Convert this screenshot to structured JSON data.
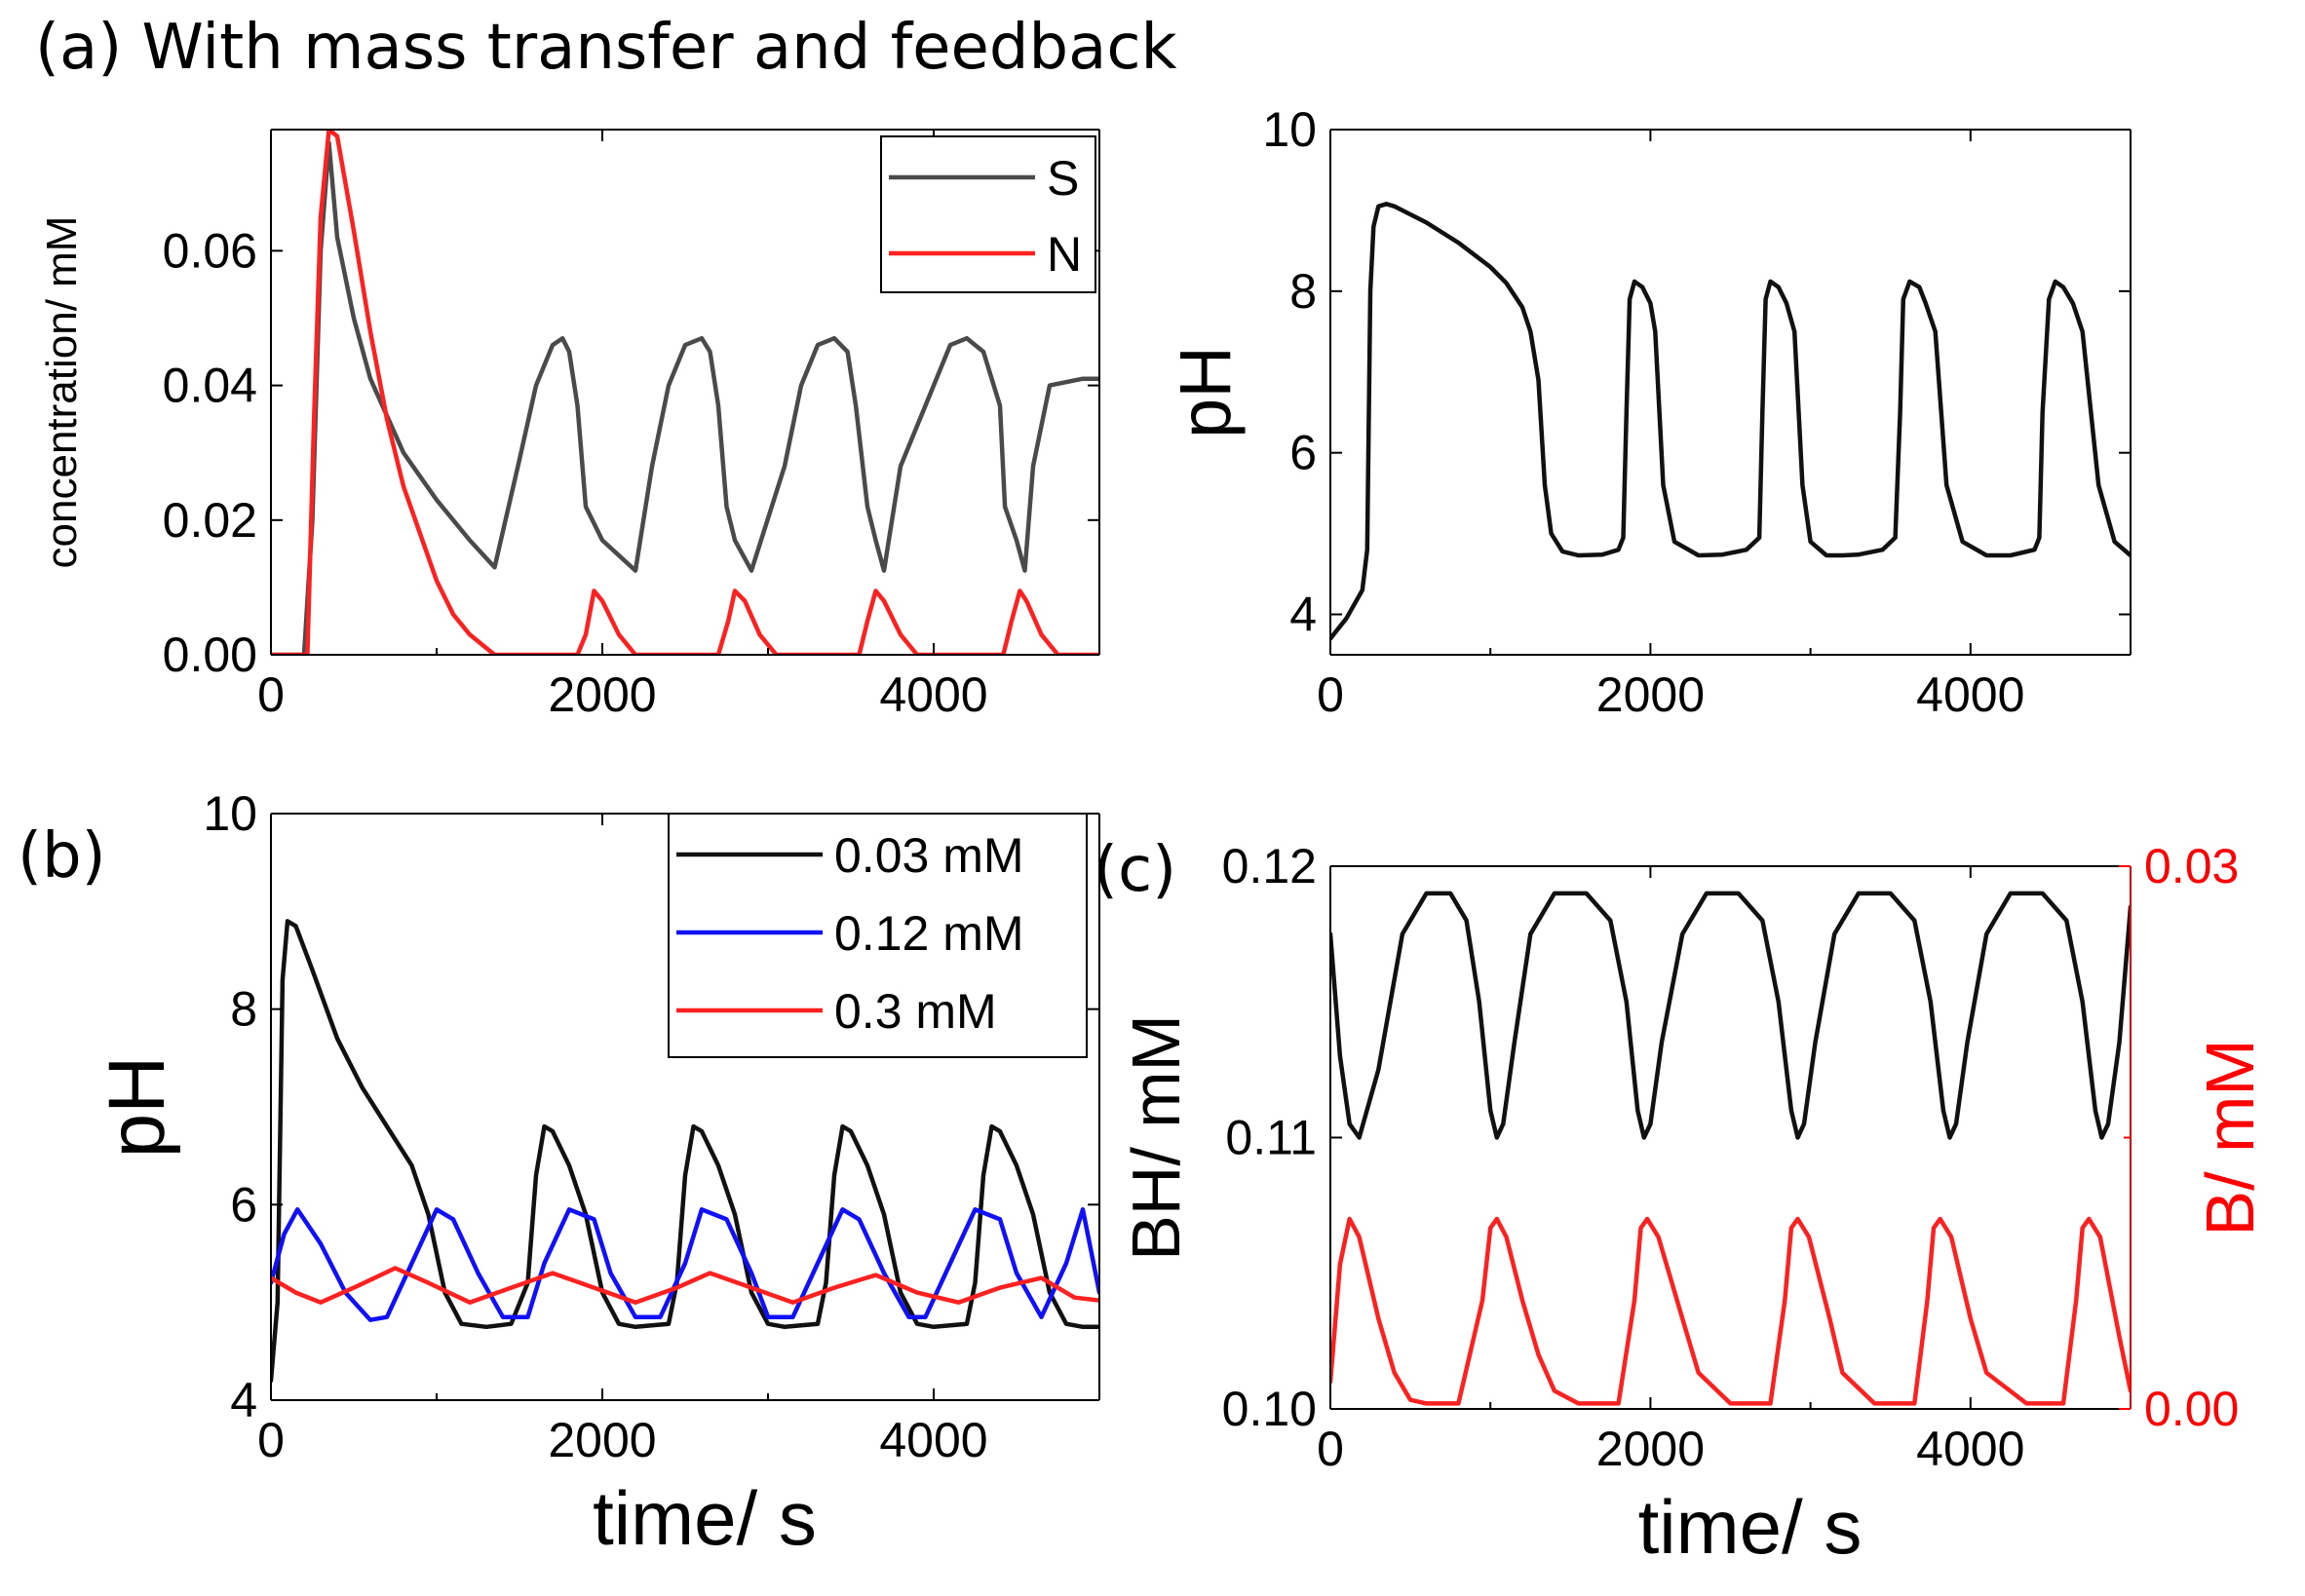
{
  "figure": {
    "title_a": "(a) With mass transfer and feedback",
    "label_b": "(b)",
    "label_c": "(c)"
  },
  "colors": {
    "black": "#111111",
    "gray": "#4a4a4a",
    "red": "#ff2020",
    "blue": "#1010ff",
    "axis_red": "#ff0000"
  },
  "chart_data": [
    {
      "id": "a_conc",
      "type": "line",
      "title": "",
      "xlabel": "",
      "ylabel": "concentration/ mM",
      "xlim": [
        0,
        5000
      ],
      "ylim": [
        0,
        0.078
      ],
      "xticks": [
        0,
        2000,
        4000
      ],
      "xtick_labels": [
        "0",
        "2000",
        "4000"
      ],
      "yticks": [
        0,
        0.02,
        0.04,
        0.06
      ],
      "ytick_labels": [
        "0.00",
        "0.02",
        "0.04",
        "0.06"
      ],
      "legend": {
        "position": "top-right",
        "entries": [
          "S",
          "N"
        ]
      },
      "series": [
        {
          "name": "S",
          "color": "#4a4a4a",
          "x": [
            0,
            200,
            250,
            300,
            350,
            400,
            500,
            600,
            800,
            1000,
            1200,
            1350,
            1500,
            1600,
            1700,
            1760,
            1800,
            1850,
            1900,
            2000,
            2200,
            2300,
            2400,
            2500,
            2600,
            2650,
            2700,
            2750,
            2800,
            2900,
            3100,
            3200,
            3300,
            3400,
            3480,
            3530,
            3600,
            3650,
            3700,
            3800,
            4000,
            4100,
            4200,
            4300,
            4400,
            4430,
            4500,
            4550,
            4600,
            4700,
            4900,
            5000
          ],
          "y": [
            0,
            0,
            0.02,
            0.06,
            0.076,
            0.062,
            0.05,
            0.041,
            0.03,
            0.023,
            0.017,
            0.013,
            0.029,
            0.04,
            0.046,
            0.047,
            0.045,
            0.037,
            0.022,
            0.017,
            0.0125,
            0.028,
            0.04,
            0.046,
            0.047,
            0.045,
            0.037,
            0.022,
            0.017,
            0.0125,
            0.028,
            0.04,
            0.046,
            0.047,
            0.045,
            0.037,
            0.022,
            0.017,
            0.0125,
            0.028,
            0.04,
            0.046,
            0.047,
            0.045,
            0.037,
            0.022,
            0.017,
            0.0125,
            0.028,
            0.04,
            0.041,
            0.041
          ]
        },
        {
          "name": "N",
          "color": "#ff2020",
          "x": [
            0,
            220,
            260,
            300,
            350,
            400,
            500,
            600,
            700,
            800,
            900,
            1000,
            1100,
            1200,
            1300,
            1350,
            1850,
            1900,
            1950,
            2000,
            2100,
            2200,
            2700,
            2760,
            2800,
            2860,
            2950,
            3050,
            3550,
            3600,
            3650,
            3700,
            3800,
            3900,
            4420,
            4470,
            4520,
            4560,
            4650,
            4750,
            5000
          ],
          "y": [
            0,
            0,
            0.035,
            0.065,
            0.078,
            0.077,
            0.063,
            0.048,
            0.035,
            0.025,
            0.018,
            0.011,
            0.006,
            0.003,
            0.001,
            0,
            0,
            0.003,
            0.0095,
            0.008,
            0.003,
            0,
            0,
            0.005,
            0.0095,
            0.008,
            0.003,
            0,
            0,
            0.005,
            0.0095,
            0.008,
            0.003,
            0,
            0,
            0.005,
            0.0095,
            0.008,
            0.003,
            0,
            0
          ]
        }
      ]
    },
    {
      "id": "a_ph",
      "type": "line",
      "title": "",
      "xlabel": "",
      "ylabel": "pH",
      "xlim": [
        0,
        5000
      ],
      "ylim": [
        3.5,
        10
      ],
      "xticks": [
        0,
        2000,
        4000
      ],
      "xtick_labels": [
        "0",
        "2000",
        "4000"
      ],
      "yticks": [
        4,
        6,
        8,
        10
      ],
      "ytick_labels": [
        "4",
        "6",
        "8",
        "10"
      ],
      "series": [
        {
          "name": "pH",
          "color": "#111111",
          "x": [
            0,
            100,
            200,
            230,
            250,
            270,
            300,
            350,
            400,
            600,
            800,
            1000,
            1100,
            1200,
            1250,
            1300,
            1340,
            1380,
            1450,
            1550,
            1700,
            1800,
            1830,
            1850,
            1870,
            1900,
            1950,
            2000,
            2030,
            2080,
            2150,
            2300,
            2450,
            2600,
            2680,
            2700,
            2720,
            2750,
            2800,
            2850,
            2900,
            2950,
            3000,
            3100,
            3200,
            3300,
            3450,
            3530,
            3560,
            3580,
            3620,
            3680,
            3720,
            3780,
            3850,
            3950,
            4100,
            4250,
            4400,
            4430,
            4450,
            4490,
            4530,
            4580,
            4640,
            4700,
            4800,
            4900,
            5000
          ],
          "y": [
            3.7,
            3.95,
            4.3,
            4.8,
            8.0,
            8.8,
            9.05,
            9.08,
            9.05,
            8.85,
            8.6,
            8.3,
            8.1,
            7.8,
            7.5,
            6.9,
            5.6,
            5.0,
            4.78,
            4.73,
            4.74,
            4.8,
            4.95,
            6.5,
            7.9,
            8.12,
            8.05,
            7.85,
            7.5,
            5.6,
            4.9,
            4.73,
            4.74,
            4.8,
            4.95,
            6.5,
            7.9,
            8.12,
            8.05,
            7.85,
            7.5,
            5.6,
            4.9,
            4.73,
            4.73,
            4.74,
            4.8,
            4.95,
            6.5,
            7.9,
            8.12,
            8.05,
            7.85,
            7.5,
            5.6,
            4.9,
            4.73,
            4.73,
            4.8,
            4.95,
            6.5,
            7.9,
            8.12,
            8.05,
            7.85,
            7.5,
            5.6,
            4.9,
            4.73
          ]
        }
      ]
    },
    {
      "id": "b_ph",
      "type": "line",
      "title": "",
      "xlabel": "time/ s",
      "ylabel": "pH",
      "xlim": [
        0,
        5000
      ],
      "ylim": [
        4,
        10
      ],
      "xticks": [
        0,
        2000,
        4000
      ],
      "xtick_labels": [
        "0",
        "2000",
        "4000"
      ],
      "yticks": [
        4,
        6,
        8,
        10
      ],
      "ytick_labels": [
        "4",
        "6",
        "8",
        "10"
      ],
      "legend": {
        "position": "top-right",
        "entries": [
          "0.03 mM",
          "0.12 mM",
          "0.3 mM"
        ]
      },
      "series": [
        {
          "name": "0.03 mM",
          "color": "#111111",
          "x": [
            0,
            40,
            70,
            100,
            150,
            250,
            400,
            550,
            700,
            850,
            950,
            1050,
            1150,
            1300,
            1450,
            1550,
            1600,
            1650,
            1700,
            1800,
            1900,
            2000,
            2100,
            2200,
            2400,
            2450,
            2500,
            2550,
            2600,
            2700,
            2800,
            2900,
            3000,
            3100,
            3300,
            3350,
            3400,
            3450,
            3500,
            3600,
            3700,
            3800,
            3900,
            4000,
            4200,
            4250,
            4300,
            4350,
            4400,
            4500,
            4600,
            4700,
            4800,
            4900,
            5000
          ],
          "y": [
            4.2,
            5.0,
            8.3,
            8.9,
            8.85,
            8.4,
            7.7,
            7.2,
            6.8,
            6.4,
            5.9,
            5.1,
            4.78,
            4.75,
            4.78,
            5.2,
            6.3,
            6.8,
            6.75,
            6.4,
            5.9,
            5.1,
            4.78,
            4.75,
            4.78,
            5.2,
            6.3,
            6.8,
            6.75,
            6.4,
            5.9,
            5.1,
            4.78,
            4.75,
            4.78,
            5.2,
            6.3,
            6.8,
            6.75,
            6.4,
            5.9,
            5.1,
            4.78,
            4.75,
            4.78,
            5.2,
            6.3,
            6.8,
            6.75,
            6.4,
            5.9,
            5.1,
            4.78,
            4.75,
            4.75
          ]
        },
        {
          "name": "0.12 mM",
          "color": "#1010ff",
          "x": [
            0,
            80,
            160,
            300,
            450,
            600,
            700,
            850,
            1000,
            1100,
            1250,
            1400,
            1550,
            1650,
            1800,
            1950,
            2050,
            2200,
            2350,
            2500,
            2600,
            2750,
            2900,
            3000,
            3150,
            3300,
            3450,
            3550,
            3700,
            3850,
            3950,
            4100,
            4250,
            4400,
            4500,
            4650,
            4800,
            4900,
            5000
          ],
          "y": [
            5.2,
            5.7,
            5.95,
            5.6,
            5.1,
            4.82,
            4.85,
            5.4,
            5.95,
            5.85,
            5.3,
            4.85,
            4.85,
            5.4,
            5.95,
            5.85,
            5.3,
            4.85,
            4.85,
            5.4,
            5.95,
            5.85,
            5.3,
            4.85,
            4.85,
            5.4,
            5.95,
            5.85,
            5.3,
            4.85,
            4.85,
            5.4,
            5.95,
            5.85,
            5.3,
            4.85,
            5.4,
            5.95,
            5.1
          ]
        },
        {
          "name": "0.3 mM",
          "color": "#ff2020",
          "x": [
            0,
            150,
            300,
            500,
            750,
            950,
            1200,
            1450,
            1700,
            1950,
            2200,
            2450,
            2650,
            2900,
            3150,
            3400,
            3650,
            3900,
            4150,
            4400,
            4650,
            4850,
            5000
          ],
          "y": [
            5.25,
            5.1,
            5.0,
            5.15,
            5.35,
            5.2,
            5.0,
            5.15,
            5.3,
            5.15,
            5.0,
            5.15,
            5.3,
            5.15,
            5.0,
            5.15,
            5.28,
            5.1,
            5.0,
            5.15,
            5.25,
            5.05,
            5.02
          ]
        }
      ]
    },
    {
      "id": "c_bh",
      "type": "line",
      "title": "",
      "xlabel": "time/ s",
      "ylabel": "BH/ mM",
      "ylabel_right": "B/ mM",
      "xlim": [
        0,
        5000
      ],
      "ylim": [
        0.1,
        0.12
      ],
      "ylim_right": [
        0,
        0.03
      ],
      "xticks": [
        0,
        2000,
        4000
      ],
      "xtick_labels": [
        "0",
        "2000",
        "4000"
      ],
      "yticks": [
        0.1,
        0.11,
        0.12
      ],
      "ytick_labels": [
        "0.10",
        "0.11",
        "0.12"
      ],
      "yticks_right": [
        0,
        0.03
      ],
      "ytick_labels_right": [
        "0.00",
        "0.03"
      ],
      "series": [
        {
          "name": "BH",
          "axis": "left",
          "color": "#111111",
          "x": [
            0,
            60,
            120,
            180,
            300,
            450,
            600,
            750,
            850,
            930,
            1000,
            1040,
            1080,
            1150,
            1250,
            1400,
            1600,
            1750,
            1850,
            1920,
            1960,
            2000,
            2070,
            2200,
            2350,
            2550,
            2700,
            2800,
            2880,
            2920,
            2960,
            3030,
            3150,
            3300,
            3500,
            3650,
            3750,
            3830,
            3870,
            3910,
            3980,
            4100,
            4250,
            4450,
            4600,
            4700,
            4780,
            4820,
            4860,
            4930,
            5000
          ],
          "y": [
            0.1175,
            0.113,
            0.1105,
            0.11,
            0.1125,
            0.1175,
            0.119,
            0.119,
            0.118,
            0.115,
            0.111,
            0.11,
            0.1105,
            0.1135,
            0.1175,
            0.119,
            0.119,
            0.118,
            0.115,
            0.111,
            0.11,
            0.1105,
            0.1135,
            0.1175,
            0.119,
            0.119,
            0.118,
            0.115,
            0.111,
            0.11,
            0.1105,
            0.1135,
            0.1175,
            0.119,
            0.119,
            0.118,
            0.115,
            0.111,
            0.11,
            0.1105,
            0.1135,
            0.1175,
            0.119,
            0.119,
            0.118,
            0.115,
            0.111,
            0.11,
            0.1105,
            0.1135,
            0.1185
          ]
        },
        {
          "name": "B",
          "axis": "right",
          "color": "#ff2020",
          "x": [
            0,
            60,
            120,
            180,
            300,
            400,
            500,
            600,
            800,
            950,
            1000,
            1040,
            1100,
            1200,
            1300,
            1400,
            1550,
            1800,
            1900,
            1940,
            1980,
            2050,
            2200,
            2300,
            2500,
            2750,
            2840,
            2880,
            2920,
            2990,
            3120,
            3200,
            3400,
            3650,
            3730,
            3770,
            3810,
            3880,
            4000,
            4100,
            4350,
            4580,
            4660,
            4700,
            4740,
            4810,
            4930,
            5000
          ],
          "y": [
            0.0015,
            0.008,
            0.0105,
            0.0095,
            0.005,
            0.002,
            0.0005,
            0.0003,
            0.0003,
            0.006,
            0.01,
            0.0105,
            0.0095,
            0.006,
            0.003,
            0.001,
            0.0003,
            0.0003,
            0.006,
            0.01,
            0.0105,
            0.0095,
            0.005,
            0.002,
            0.0003,
            0.0003,
            0.006,
            0.01,
            0.0105,
            0.0095,
            0.005,
            0.002,
            0.0003,
            0.0003,
            0.006,
            0.01,
            0.0105,
            0.0095,
            0.005,
            0.002,
            0.0003,
            0.0003,
            0.006,
            0.01,
            0.0105,
            0.0095,
            0.004,
            0.001
          ]
        }
      ]
    }
  ]
}
